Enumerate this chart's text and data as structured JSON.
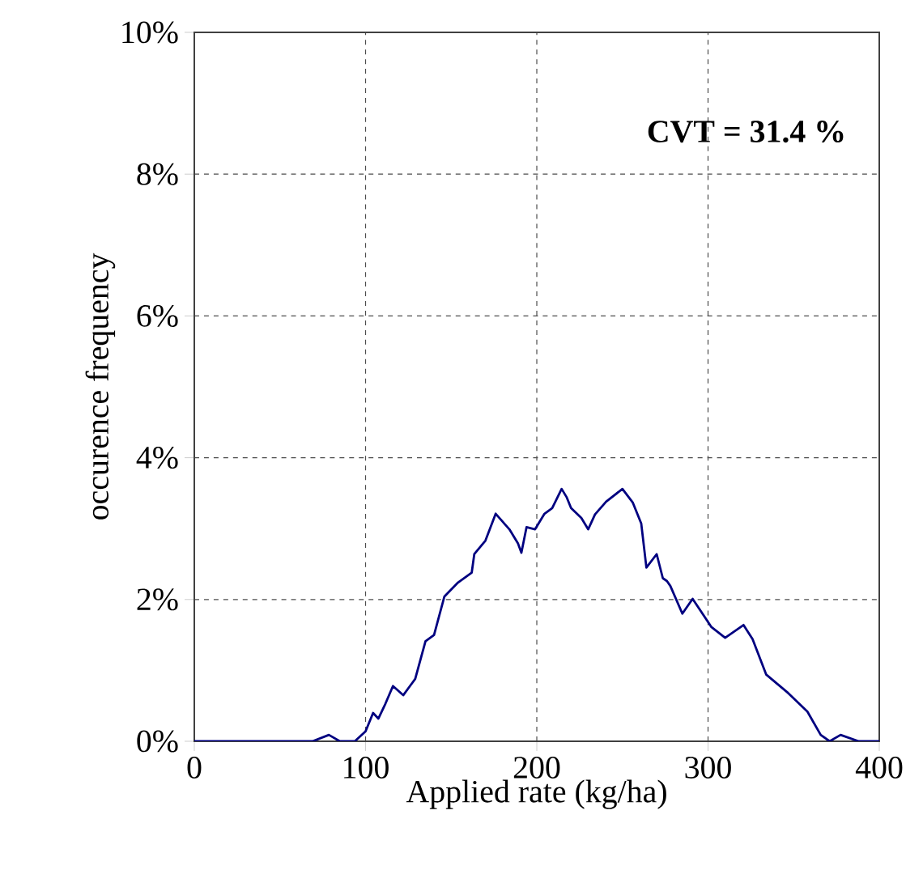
{
  "chart_data": {
    "type": "line",
    "xlabel": "Applied rate (kg/ha)",
    "ylabel": "occurence frequency",
    "annotations": [
      "CVT =  31.4 %"
    ],
    "x": [
      0,
      69,
      78.6,
      85,
      93.7,
      100,
      104.4,
      107.5,
      111.6,
      116,
      122,
      129,
      135,
      140,
      146,
      154,
      162,
      163.5,
      170,
      176,
      184,
      189,
      191,
      194,
      199,
      204.5,
      209,
      214.5,
      217.5,
      220,
      226,
      230,
      234,
      240.5,
      250,
      256,
      261,
      264,
      270,
      273.6,
      276,
      278,
      285,
      291,
      302,
      310,
      320.7,
      326,
      334,
      346.8,
      358,
      365.8,
      371,
      377.4,
      388,
      400
    ],
    "series": [
      {
        "color": "#000080",
        "values": [
          0,
          0,
          0.09,
          0,
          0,
          0.14,
          0.4,
          0.32,
          0.53,
          0.78,
          0.65,
          0.88,
          1.41,
          1.5,
          2.04,
          2.24,
          2.38,
          2.64,
          2.83,
          3.21,
          2.99,
          2.79,
          2.66,
          3.02,
          2.99,
          3.21,
          3.29,
          3.56,
          3.44,
          3.29,
          3.15,
          2.99,
          3.2,
          3.38,
          3.56,
          3.37,
          3.07,
          2.45,
          2.64,
          2.3,
          2.26,
          2.19,
          1.8,
          2.01,
          1.61,
          1.46,
          1.64,
          1.44,
          0.94,
          0.68,
          0.42,
          0.09,
          0,
          0.09,
          0,
          0
        ]
      }
    ],
    "xlim": [
      0,
      400
    ],
    "ylim": [
      0,
      10
    ],
    "xticks": [
      0,
      100,
      200,
      300,
      400
    ],
    "yticks": [
      {
        "value": 0,
        "label": "0%"
      },
      {
        "value": 2,
        "label": "2%"
      },
      {
        "value": 4,
        "label": "4%"
      },
      {
        "value": 6,
        "label": "6%"
      },
      {
        "value": 8,
        "label": "8%"
      },
      {
        "value": 10,
        "label": "10%"
      }
    ],
    "grid": true,
    "marker": "none",
    "line_style": "solid"
  }
}
